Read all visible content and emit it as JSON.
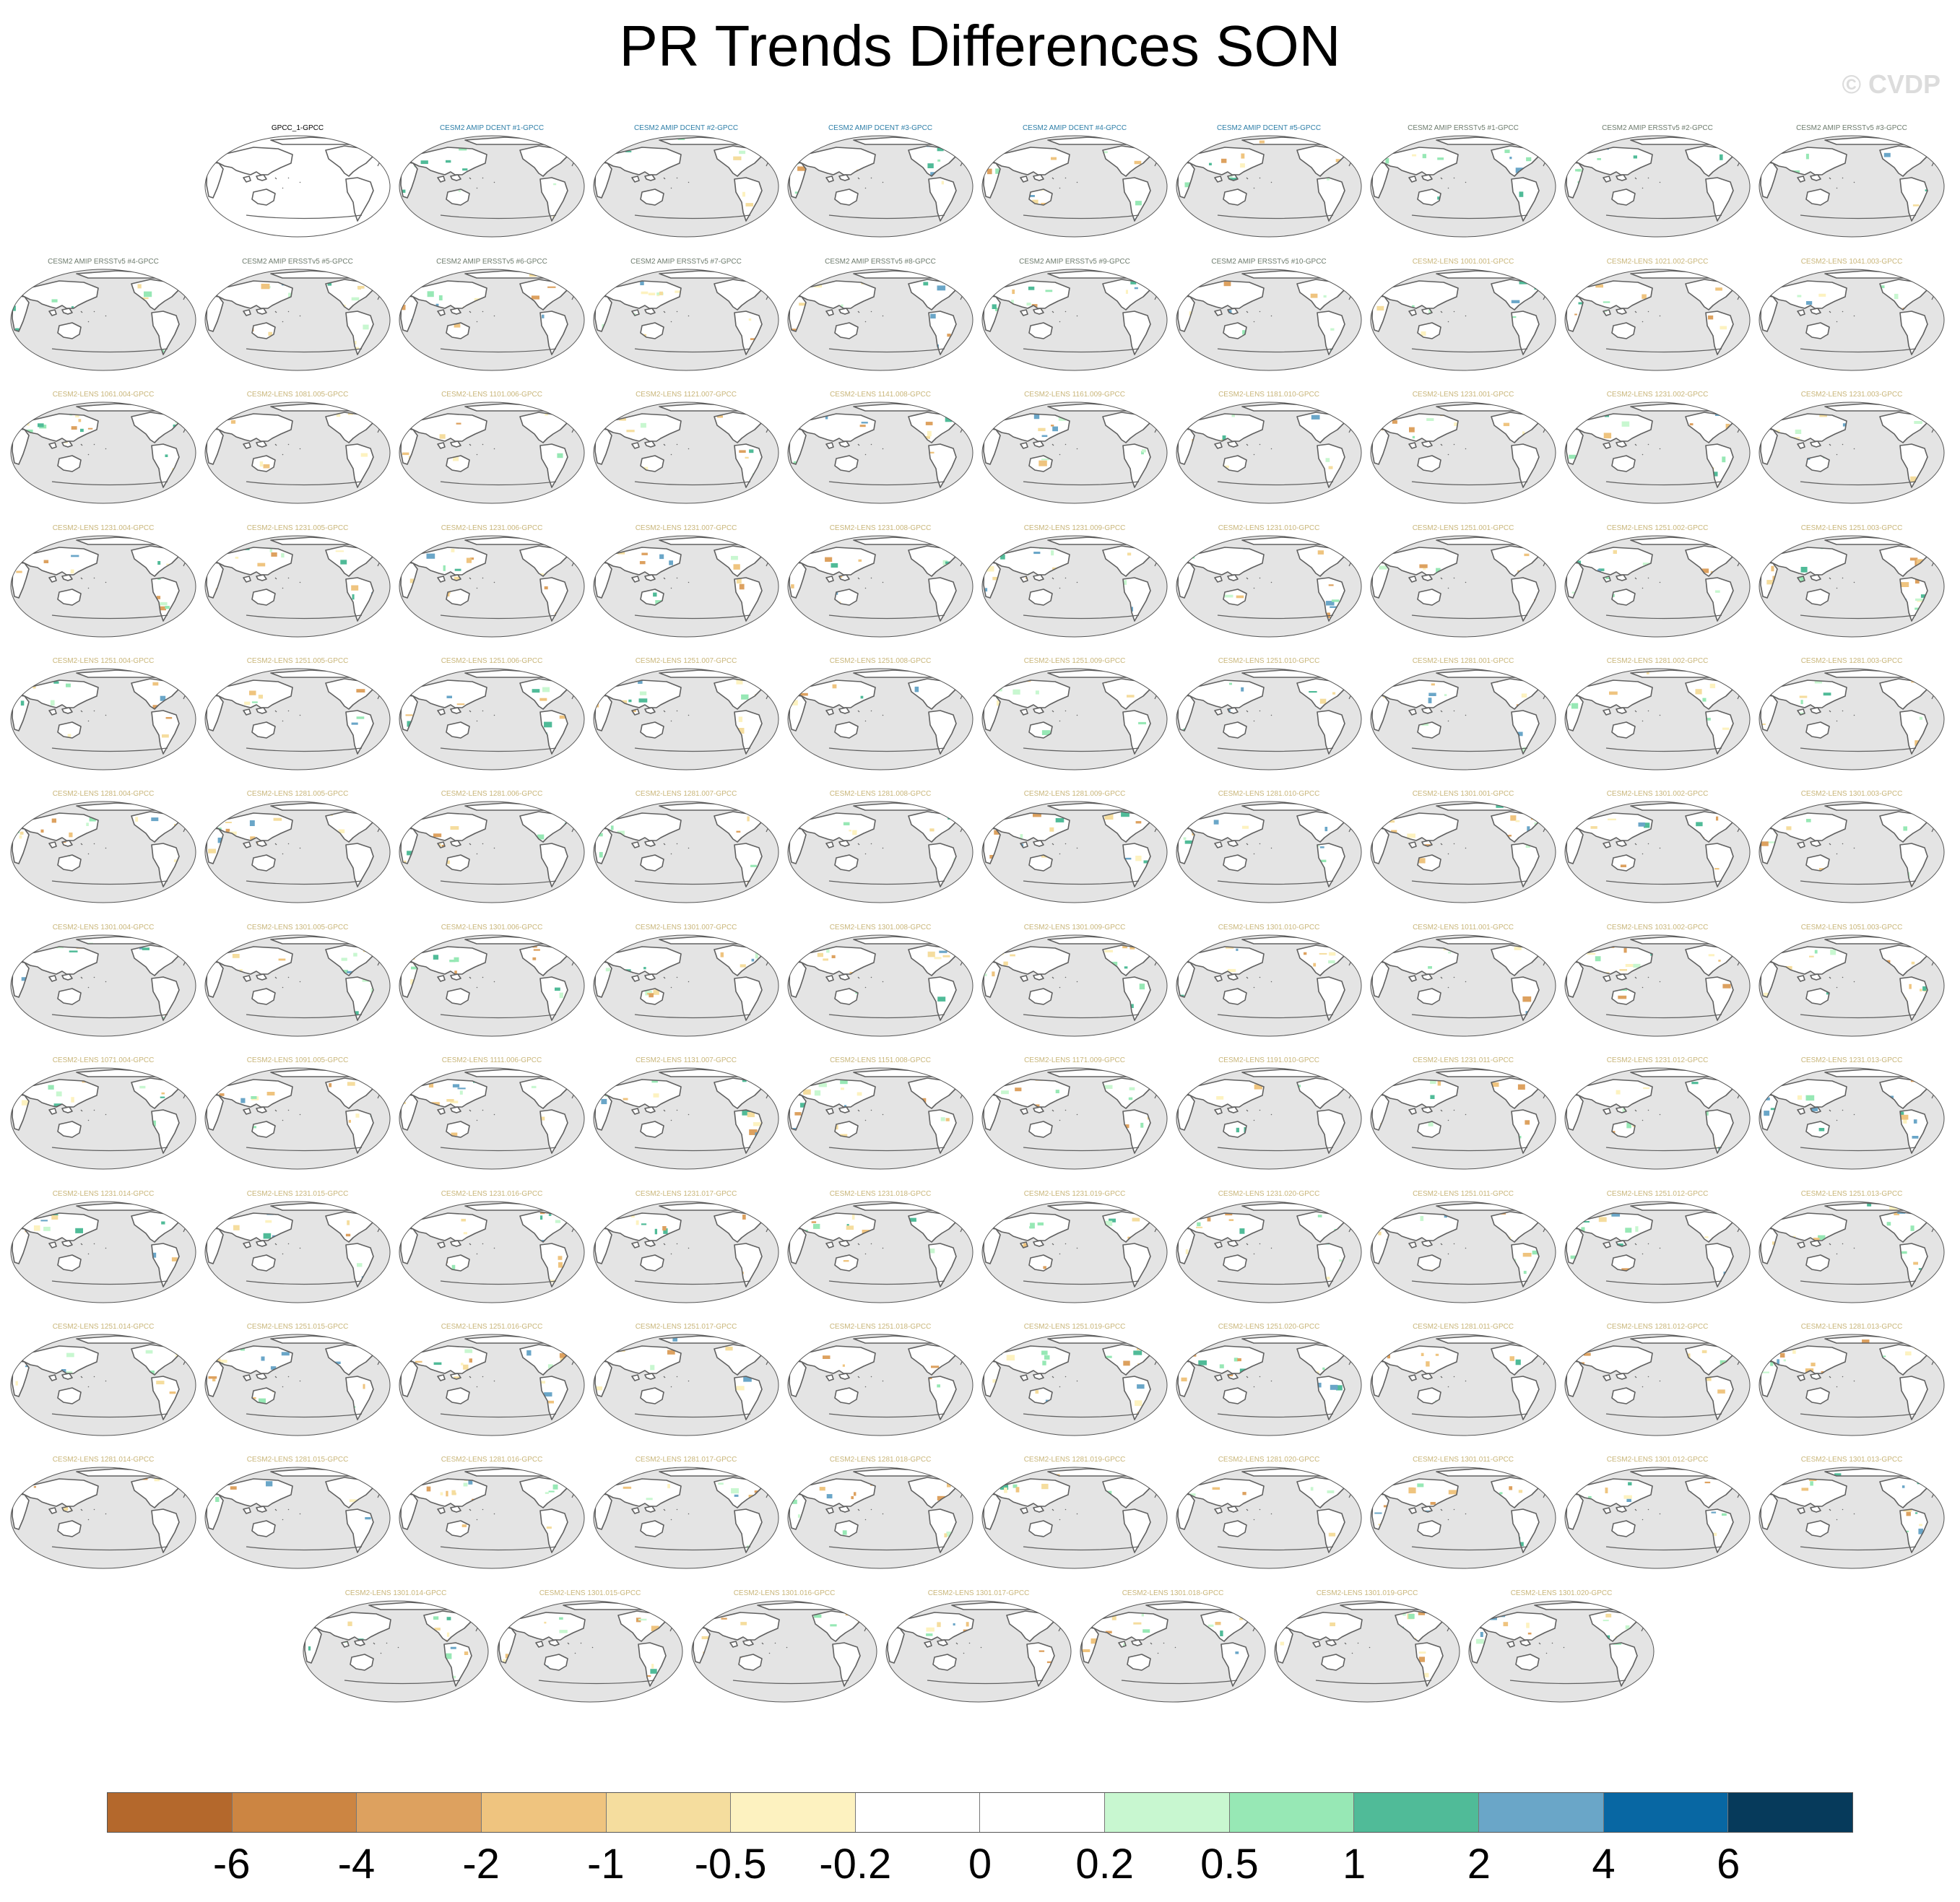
{
  "title": "PR Trends Differences SON",
  "watermark": "© CVDP",
  "colors": {
    "ocean": "#e4e4e4",
    "coast": "#606060",
    "title_obs": "#000000",
    "title_dcent": "#2f7fa8",
    "title_ersst": "#6e7c6e",
    "title_lens": "#c9b67a"
  },
  "chart_data": {
    "type": "heatmap",
    "projection": "Robinson-like, Pacific-centered, global map panels",
    "panels": [
      {
        "title": "GPCC_1-GPCC",
        "group": "obs"
      },
      {
        "title": "CESM2 AMIP DCENT #1-GPCC",
        "group": "dcent"
      },
      {
        "title": "CESM2 AMIP DCENT #2-GPCC",
        "group": "dcent"
      },
      {
        "title": "CESM2 AMIP DCENT #3-GPCC",
        "group": "dcent"
      },
      {
        "title": "CESM2 AMIP DCENT #4-GPCC",
        "group": "dcent"
      },
      {
        "title": "CESM2 AMIP DCENT #5-GPCC",
        "group": "dcent"
      },
      {
        "title": "CESM2 AMIP ERSSTv5 #1-GPCC",
        "group": "ersst"
      },
      {
        "title": "CESM2 AMIP ERSSTv5 #2-GPCC",
        "group": "ersst"
      },
      {
        "title": "CESM2 AMIP ERSSTv5 #3-GPCC",
        "group": "ersst"
      },
      {
        "title": "CESM2 AMIP ERSSTv5 #4-GPCC",
        "group": "ersst"
      },
      {
        "title": "CESM2 AMIP ERSSTv5 #5-GPCC",
        "group": "ersst"
      },
      {
        "title": "CESM2 AMIP ERSSTv5 #6-GPCC",
        "group": "ersst"
      },
      {
        "title": "CESM2 AMIP ERSSTv5 #7-GPCC",
        "group": "ersst"
      },
      {
        "title": "CESM2 AMIP ERSSTv5 #8-GPCC",
        "group": "ersst"
      },
      {
        "title": "CESM2 AMIP ERSSTv5 #9-GPCC",
        "group": "ersst"
      },
      {
        "title": "CESM2 AMIP ERSSTv5 #10-GPCC",
        "group": "ersst"
      },
      {
        "title": "CESM2-LENS 1001.001-GPCC",
        "group": "lens"
      },
      {
        "title": "CESM2-LENS 1021.002-GPCC",
        "group": "lens"
      },
      {
        "title": "CESM2-LENS 1041.003-GPCC",
        "group": "lens"
      },
      {
        "title": "CESM2-LENS 1061.004-GPCC",
        "group": "lens"
      },
      {
        "title": "CESM2-LENS 1081.005-GPCC",
        "group": "lens"
      },
      {
        "title": "CESM2-LENS 1101.006-GPCC",
        "group": "lens"
      },
      {
        "title": "CESM2-LENS 1121.007-GPCC",
        "group": "lens"
      },
      {
        "title": "CESM2-LENS 1141.008-GPCC",
        "group": "lens"
      },
      {
        "title": "CESM2-LENS 1161.009-GPCC",
        "group": "lens"
      },
      {
        "title": "CESM2-LENS 1181.010-GPCC",
        "group": "lens"
      },
      {
        "title": "CESM2-LENS 1231.001-GPCC",
        "group": "lens"
      },
      {
        "title": "CESM2-LENS 1231.002-GPCC",
        "group": "lens"
      },
      {
        "title": "CESM2-LENS 1231.003-GPCC",
        "group": "lens"
      },
      {
        "title": "CESM2-LENS 1231.004-GPCC",
        "group": "lens"
      },
      {
        "title": "CESM2-LENS 1231.005-GPCC",
        "group": "lens"
      },
      {
        "title": "CESM2-LENS 1231.006-GPCC",
        "group": "lens"
      },
      {
        "title": "CESM2-LENS 1231.007-GPCC",
        "group": "lens"
      },
      {
        "title": "CESM2-LENS 1231.008-GPCC",
        "group": "lens"
      },
      {
        "title": "CESM2-LENS 1231.009-GPCC",
        "group": "lens"
      },
      {
        "title": "CESM2-LENS 1231.010-GPCC",
        "group": "lens"
      },
      {
        "title": "CESM2-LENS 1251.001-GPCC",
        "group": "lens"
      },
      {
        "title": "CESM2-LENS 1251.002-GPCC",
        "group": "lens"
      },
      {
        "title": "CESM2-LENS 1251.003-GPCC",
        "group": "lens"
      },
      {
        "title": "CESM2-LENS 1251.004-GPCC",
        "group": "lens"
      },
      {
        "title": "CESM2-LENS 1251.005-GPCC",
        "group": "lens"
      },
      {
        "title": "CESM2-LENS 1251.006-GPCC",
        "group": "lens"
      },
      {
        "title": "CESM2-LENS 1251.007-GPCC",
        "group": "lens"
      },
      {
        "title": "CESM2-LENS 1251.008-GPCC",
        "group": "lens"
      },
      {
        "title": "CESM2-LENS 1251.009-GPCC",
        "group": "lens"
      },
      {
        "title": "CESM2-LENS 1251.010-GPCC",
        "group": "lens"
      },
      {
        "title": "CESM2-LENS 1281.001-GPCC",
        "group": "lens"
      },
      {
        "title": "CESM2-LENS 1281.002-GPCC",
        "group": "lens"
      },
      {
        "title": "CESM2-LENS 1281.003-GPCC",
        "group": "lens"
      },
      {
        "title": "CESM2-LENS 1281.004-GPCC",
        "group": "lens"
      },
      {
        "title": "CESM2-LENS 1281.005-GPCC",
        "group": "lens"
      },
      {
        "title": "CESM2-LENS 1281.006-GPCC",
        "group": "lens"
      },
      {
        "title": "CESM2-LENS 1281.007-GPCC",
        "group": "lens"
      },
      {
        "title": "CESM2-LENS 1281.008-GPCC",
        "group": "lens"
      },
      {
        "title": "CESM2-LENS 1281.009-GPCC",
        "group": "lens"
      },
      {
        "title": "CESM2-LENS 1281.010-GPCC",
        "group": "lens"
      },
      {
        "title": "CESM2-LENS 1301.001-GPCC",
        "group": "lens"
      },
      {
        "title": "CESM2-LENS 1301.002-GPCC",
        "group": "lens"
      },
      {
        "title": "CESM2-LENS 1301.003-GPCC",
        "group": "lens"
      },
      {
        "title": "CESM2-LENS 1301.004-GPCC",
        "group": "lens"
      },
      {
        "title": "CESM2-LENS 1301.005-GPCC",
        "group": "lens"
      },
      {
        "title": "CESM2-LENS 1301.006-GPCC",
        "group": "lens"
      },
      {
        "title": "CESM2-LENS 1301.007-GPCC",
        "group": "lens"
      },
      {
        "title": "CESM2-LENS 1301.008-GPCC",
        "group": "lens"
      },
      {
        "title": "CESM2-LENS 1301.009-GPCC",
        "group": "lens"
      },
      {
        "title": "CESM2-LENS 1301.010-GPCC",
        "group": "lens"
      },
      {
        "title": "CESM2-LENS 1011.001-GPCC",
        "group": "lens"
      },
      {
        "title": "CESM2-LENS 1031.002-GPCC",
        "group": "lens"
      },
      {
        "title": "CESM2-LENS 1051.003-GPCC",
        "group": "lens"
      },
      {
        "title": "CESM2-LENS 1071.004-GPCC",
        "group": "lens"
      },
      {
        "title": "CESM2-LENS 1091.005-GPCC",
        "group": "lens"
      },
      {
        "title": "CESM2-LENS 1111.006-GPCC",
        "group": "lens"
      },
      {
        "title": "CESM2-LENS 1131.007-GPCC",
        "group": "lens"
      },
      {
        "title": "CESM2-LENS 1151.008-GPCC",
        "group": "lens"
      },
      {
        "title": "CESM2-LENS 1171.009-GPCC",
        "group": "lens"
      },
      {
        "title": "CESM2-LENS 1191.010-GPCC",
        "group": "lens"
      },
      {
        "title": "CESM2-LENS 1231.011-GPCC",
        "group": "lens"
      },
      {
        "title": "CESM2-LENS 1231.012-GPCC",
        "group": "lens"
      },
      {
        "title": "CESM2-LENS 1231.013-GPCC",
        "group": "lens"
      },
      {
        "title": "CESM2-LENS 1231.014-GPCC",
        "group": "lens"
      },
      {
        "title": "CESM2-LENS 1231.015-GPCC",
        "group": "lens"
      },
      {
        "title": "CESM2-LENS 1231.016-GPCC",
        "group": "lens"
      },
      {
        "title": "CESM2-LENS 1231.017-GPCC",
        "group": "lens"
      },
      {
        "title": "CESM2-LENS 1231.018-GPCC",
        "group": "lens"
      },
      {
        "title": "CESM2-LENS 1231.019-GPCC",
        "group": "lens"
      },
      {
        "title": "CESM2-LENS 1231.020-GPCC",
        "group": "lens"
      },
      {
        "title": "CESM2-LENS 1251.011-GPCC",
        "group": "lens"
      },
      {
        "title": "CESM2-LENS 1251.012-GPCC",
        "group": "lens"
      },
      {
        "title": "CESM2-LENS 1251.013-GPCC",
        "group": "lens"
      },
      {
        "title": "CESM2-LENS 1251.014-GPCC",
        "group": "lens"
      },
      {
        "title": "CESM2-LENS 1251.015-GPCC",
        "group": "lens"
      },
      {
        "title": "CESM2-LENS 1251.016-GPCC",
        "group": "lens"
      },
      {
        "title": "CESM2-LENS 1251.017-GPCC",
        "group": "lens"
      },
      {
        "title": "CESM2-LENS 1251.018-GPCC",
        "group": "lens"
      },
      {
        "title": "CESM2-LENS 1251.019-GPCC",
        "group": "lens"
      },
      {
        "title": "CESM2-LENS 1251.020-GPCC",
        "group": "lens"
      },
      {
        "title": "CESM2-LENS 1281.011-GPCC",
        "group": "lens"
      },
      {
        "title": "CESM2-LENS 1281.012-GPCC",
        "group": "lens"
      },
      {
        "title": "CESM2-LENS 1281.013-GPCC",
        "group": "lens"
      },
      {
        "title": "CESM2-LENS 1281.014-GPCC",
        "group": "lens"
      },
      {
        "title": "CESM2-LENS 1281.015-GPCC",
        "group": "lens"
      },
      {
        "title": "CESM2-LENS 1281.016-GPCC",
        "group": "lens"
      },
      {
        "title": "CESM2-LENS 1281.017-GPCC",
        "group": "lens"
      },
      {
        "title": "CESM2-LENS 1281.018-GPCC",
        "group": "lens"
      },
      {
        "title": "CESM2-LENS 1281.019-GPCC",
        "group": "lens"
      },
      {
        "title": "CESM2-LENS 1281.020-GPCC",
        "group": "lens"
      },
      {
        "title": "CESM2-LENS 1301.011-GPCC",
        "group": "lens"
      },
      {
        "title": "CESM2-LENS 1301.012-GPCC",
        "group": "lens"
      },
      {
        "title": "CESM2-LENS 1301.013-GPCC",
        "group": "lens"
      },
      {
        "title": "CESM2-LENS 1301.014-GPCC",
        "group": "lens"
      },
      {
        "title": "CESM2-LENS 1301.015-GPCC",
        "group": "lens"
      },
      {
        "title": "CESM2-LENS 1301.016-GPCC",
        "group": "lens"
      },
      {
        "title": "CESM2-LENS 1301.017-GPCC",
        "group": "lens"
      },
      {
        "title": "CESM2-LENS 1301.018-GPCC",
        "group": "lens"
      },
      {
        "title": "CESM2-LENS 1301.019-GPCC",
        "group": "lens"
      },
      {
        "title": "CESM2-LENS 1301.020-GPCC",
        "group": "lens"
      }
    ],
    "colorbar": {
      "labels": [
        "-6",
        "-4",
        "-2",
        "-1",
        "-0.5",
        "-0.2",
        "0",
        "0.2",
        "0.5",
        "1",
        "2",
        "4",
        "6"
      ],
      "colors": [
        "#b4682c",
        "#cc8542",
        "#dda15f",
        "#efc47f",
        "#f5dd9e",
        "#fdf2c0",
        "#ffffff",
        "#ffffff",
        "#c8f7d0",
        "#97e8b5",
        "#50bb98",
        "#6aa6c8",
        "#0867a3",
        "#063a5b"
      ]
    }
  }
}
